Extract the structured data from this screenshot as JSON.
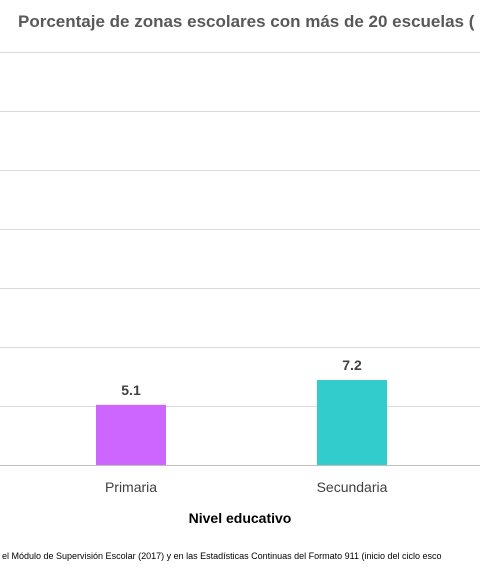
{
  "chart_data": {
    "type": "bar",
    "title": "Porcentaje de zonas escolares con más de 20 escuelas (",
    "xlabel": "Nivel educativo",
    "ylabel": "",
    "categories": [
      "Primaria",
      "Secundaria"
    ],
    "values": [
      5.1,
      7.2
    ],
    "value_labels": [
      "5.1",
      "7.2"
    ],
    "colors": [
      "#cc66ff",
      "#33cccc"
    ],
    "ylim": [
      0,
      35
    ],
    "grid": true,
    "legend": "none"
  },
  "source_note": "el Módulo de Supervisión Escolar (2017) y en las Estadísticas Continuas del Formato 911 (inicio del ciclo esco"
}
